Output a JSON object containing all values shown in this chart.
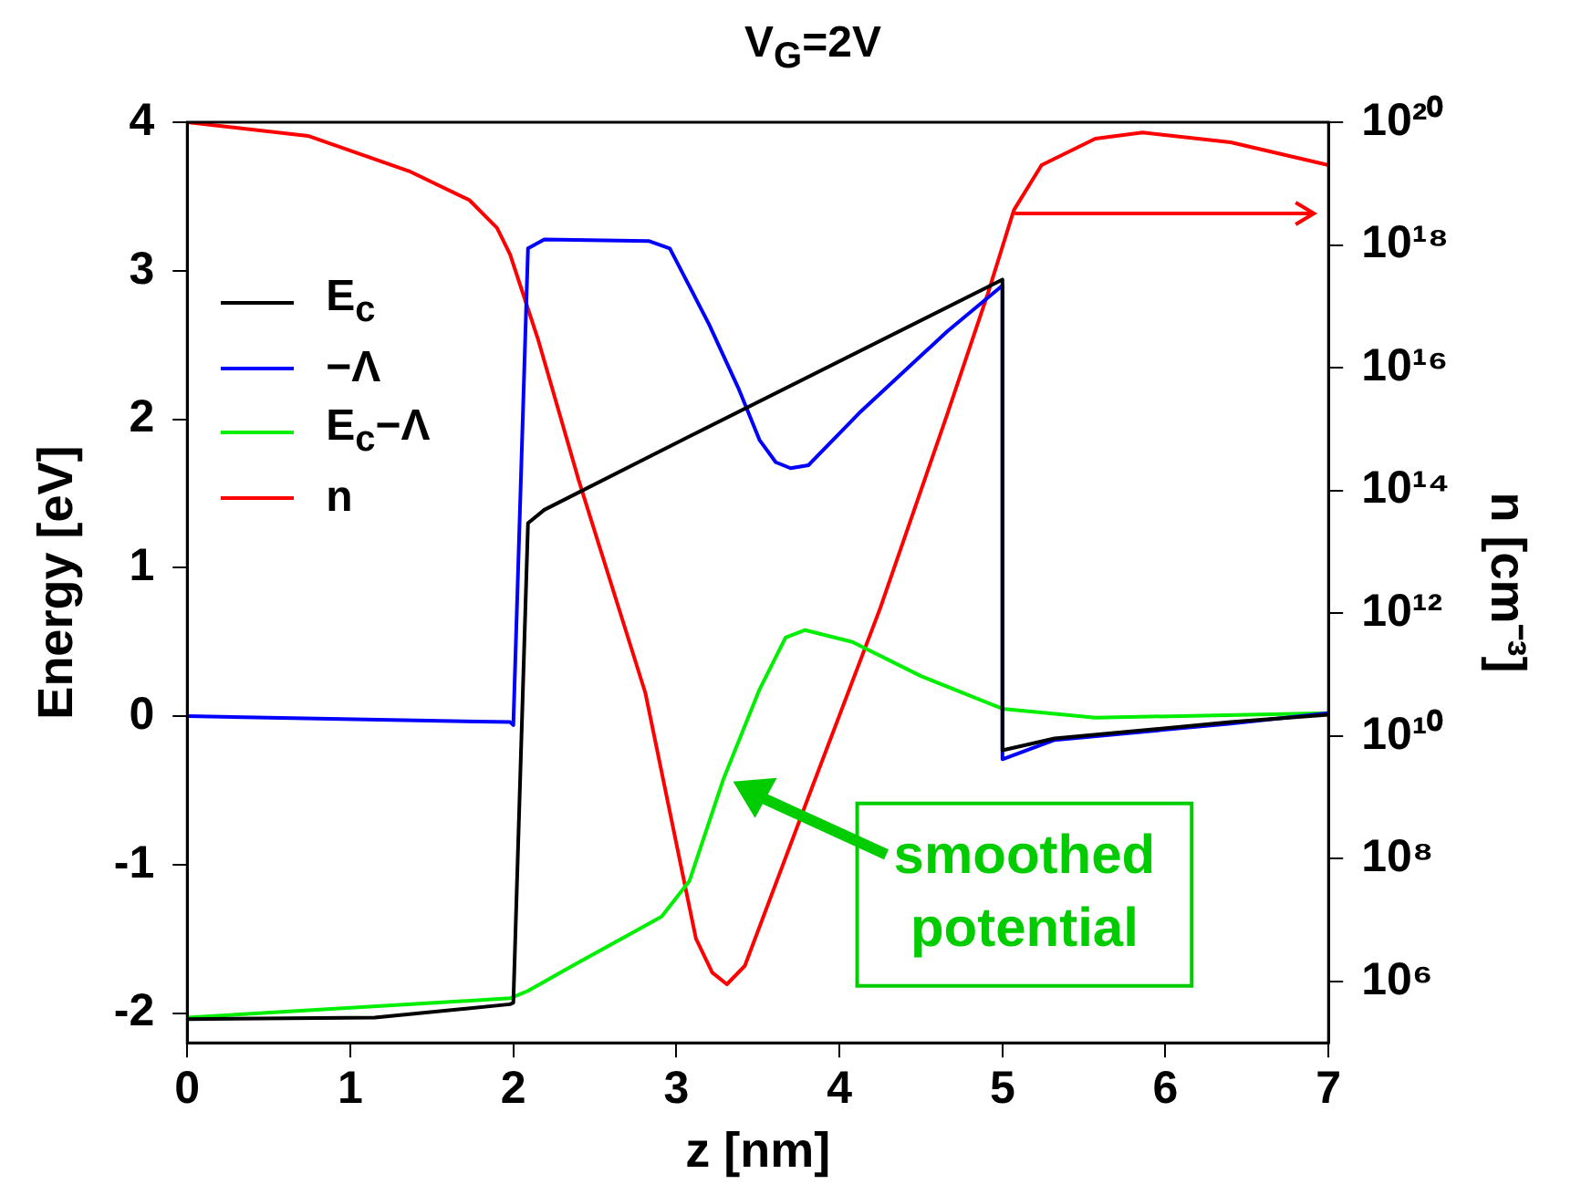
{
  "chart_data": {
    "type": "line",
    "title": "V$_{G}$=2V",
    "xlabel": "z [nm]",
    "ylabel": "Energy [eV]",
    "y2label": "n [cm⁻³]",
    "xlim": [
      0,
      7
    ],
    "xticks": [
      0,
      1,
      2,
      3,
      4,
      5,
      6,
      7
    ],
    "ylim": [
      -2.2,
      4
    ],
    "yticks": [
      -2,
      -1,
      0,
      1,
      2,
      3,
      4
    ],
    "log": "y2",
    "y2lim": [
      100000.0,
      1e+20
    ],
    "y2ticks": [
      {
        "value": 1000000.0,
        "label": "10⁶"
      },
      {
        "value": 100000000.0,
        "label": "10⁸"
      },
      {
        "value": 10000000000.0,
        "label": "10¹⁰"
      },
      {
        "value": 1000000000000.0,
        "label": "10¹²"
      },
      {
        "value": 100000000000000.0,
        "label": "10¹⁴"
      },
      {
        "value": 1e+16,
        "label": "10¹⁶"
      },
      {
        "value": 1e+18,
        "label": "10¹⁸"
      },
      {
        "value": 1e+20,
        "label": "10²⁰"
      }
    ],
    "legend": "top left",
    "marker": "none",
    "line_style": "solid",
    "series": [
      {
        "name": "E$_{c}$",
        "color": "#000000",
        "x": [
          0,
          1.15,
          1.98,
          2.0,
          2.09,
          2.19,
          3.09,
          5.0,
          5.0,
          5.32,
          6.4,
          7
        ],
        "values": [
          -2.04,
          -2.03,
          -1.94,
          -1.93,
          1.3,
          1.39,
          1.89,
          2.94,
          -0.23,
          -0.15,
          -0.04,
          0.01
        ]
      },
      {
        "name": "−Λ",
        "color": "#0000ff",
        "x": [
          0,
          1.98,
          2.0,
          2.09,
          2.19,
          2.83,
          2.96,
          3.2,
          3.38,
          3.51,
          3.61,
          3.7,
          3.81,
          4.12,
          4.66,
          5.0,
          5.0,
          5.32,
          6.4,
          7
        ],
        "values": [
          0,
          -0.04,
          -0.06,
          3.15,
          3.21,
          3.2,
          3.15,
          2.64,
          2.21,
          1.86,
          1.71,
          1.67,
          1.69,
          2.04,
          2.59,
          2.9,
          -0.29,
          -0.16,
          -0.05,
          0.02
        ]
      },
      {
        "name": "E$_{c}$−Λ",
        "color": "#00ee00",
        "x": [
          0,
          1.98,
          2.09,
          2.38,
          2.91,
          3.08,
          3.29,
          3.51,
          3.67,
          3.79,
          4.08,
          4.5,
          5.0,
          5.57,
          7
        ],
        "values": [
          -2.03,
          -1.9,
          -1.85,
          -1.67,
          -1.35,
          -1.11,
          -0.42,
          0.18,
          0.53,
          0.58,
          0.5,
          0.27,
          0.05,
          -0.01,
          0.02
        ]
      },
      {
        "name": "n",
        "color": "#ff0000",
        "axis": "y2",
        "x": [
          0,
          0.74,
          1.36,
          1.73,
          1.9,
          1.98,
          2.15,
          2.4,
          2.81,
          3.12,
          3.22,
          3.31,
          3.42,
          3.83,
          4.25,
          4.66,
          4.91,
          5.07,
          5.24,
          5.57,
          5.86,
          6.4,
          7
        ],
        "values": [
          1e+20,
          6e+19,
          1.6e+19,
          5.4e+18,
          1.9e+18,
          7e+17,
          3e+16,
          150000000000000.0,
          50000000000.0,
          5000000.0,
          1400000.0,
          900000.0,
          1800000.0,
          1400000000.0,
          1200000000000.0,
          1700000000000000.0,
          1.6e+17,
          3.7e+18,
          2e+19,
          5.4e+19,
          6.8e+19,
          4.7e+19,
          2e+19
        ]
      }
    ],
    "annotations": [
      "smoothed potential"
    ]
  }
}
